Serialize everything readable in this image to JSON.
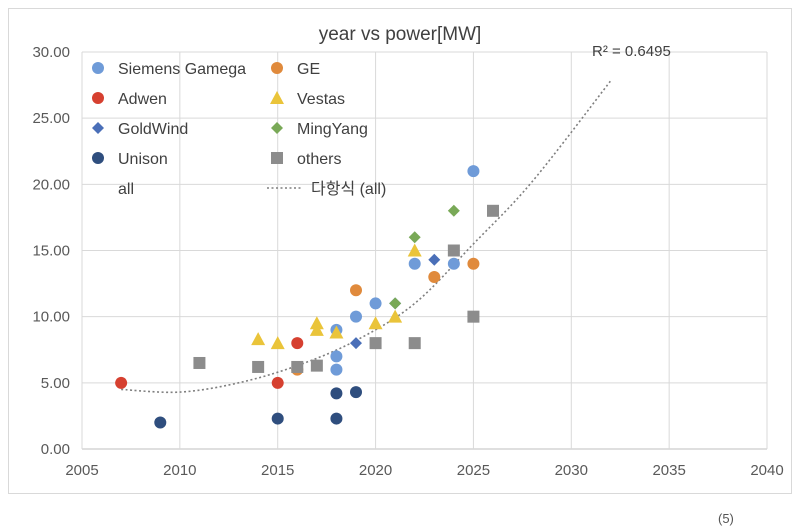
{
  "chart_data": {
    "type": "scatter",
    "title": "year vs power[MW]",
    "xlabel": "",
    "ylabel": "",
    "xlim": [
      2005,
      2040
    ],
    "ylim": [
      0,
      30
    ],
    "x_ticks": [
      "2005",
      "2010",
      "2015",
      "2020",
      "2025",
      "2030",
      "2035",
      "2040"
    ],
    "y_ticks": [
      "0.00",
      "5.00",
      "10.00",
      "15.00",
      "20.00",
      "25.00",
      "30.00"
    ],
    "grid": true,
    "legend_position": "top-left",
    "legend": [
      {
        "label": "Siemens Gamega",
        "series": 0
      },
      {
        "label": "GE",
        "series": 1
      },
      {
        "label": "Adwen",
        "series": 2
      },
      {
        "label": "Vestas",
        "series": 3
      },
      {
        "label": "GoldWind",
        "series": 4
      },
      {
        "label": "MingYang",
        "series": 5
      },
      {
        "label": "Unison",
        "series": 6
      },
      {
        "label": "others",
        "series": 7
      },
      {
        "label": "all",
        "series": -1
      },
      {
        "label": "다항식 (all)",
        "series": -2
      }
    ],
    "series": [
      {
        "name": "Siemens Gamega",
        "marker": "circle",
        "color": "#6F9BD8",
        "points": [
          [
            2018,
            9
          ],
          [
            2018,
            7
          ],
          [
            2018,
            6
          ],
          [
            2019,
            10
          ],
          [
            2020,
            11
          ],
          [
            2022,
            14
          ],
          [
            2024,
            14
          ],
          [
            2025,
            21
          ]
        ]
      },
      {
        "name": "GE",
        "marker": "circle",
        "color": "#E08A3C",
        "points": [
          [
            2016,
            6
          ],
          [
            2019,
            12
          ],
          [
            2023,
            13
          ],
          [
            2025,
            14
          ]
        ]
      },
      {
        "name": "Adwen",
        "marker": "circle",
        "color": "#D64030",
        "points": [
          [
            2007,
            5
          ],
          [
            2015,
            5
          ],
          [
            2016,
            8
          ]
        ]
      },
      {
        "name": "Vestas",
        "marker": "triangle",
        "color": "#EAC43A",
        "points": [
          [
            2014,
            8.3
          ],
          [
            2015,
            8
          ],
          [
            2017,
            9.5
          ],
          [
            2017,
            9
          ],
          [
            2018,
            8.8
          ],
          [
            2020,
            9.5
          ],
          [
            2021,
            10
          ],
          [
            2022,
            15
          ]
        ]
      },
      {
        "name": "GoldWind",
        "marker": "diamond",
        "color": "#4A6FB8",
        "points": [
          [
            2019,
            8
          ],
          [
            2021,
            11
          ],
          [
            2023,
            14.3
          ]
        ]
      },
      {
        "name": "MingYang",
        "marker": "diamond",
        "color": "#79A957",
        "points": [
          [
            2021,
            11
          ],
          [
            2022,
            16
          ],
          [
            2024,
            18
          ]
        ]
      },
      {
        "name": "Unison",
        "marker": "circle",
        "color": "#2F4E7E",
        "points": [
          [
            2009,
            2
          ],
          [
            2015,
            2.3
          ],
          [
            2018,
            4.2
          ],
          [
            2018,
            2.3
          ],
          [
            2019,
            4.3
          ]
        ]
      },
      {
        "name": "others",
        "marker": "square",
        "color": "#8C8C8C",
        "points": [
          [
            2011,
            6.5
          ],
          [
            2014,
            6.2
          ],
          [
            2016,
            6.2
          ],
          [
            2017,
            6.3
          ],
          [
            2020,
            8
          ],
          [
            2022,
            8
          ],
          [
            2024,
            15
          ],
          [
            2025,
            10
          ],
          [
            2026,
            18
          ]
        ]
      }
    ],
    "trendline": {
      "name": "다항식 (all)",
      "type": "polynomial",
      "points": [
        [
          2007,
          4.5
        ],
        [
          2010,
          4.3
        ],
        [
          2013,
          5.0
        ],
        [
          2016,
          6.3
        ],
        [
          2019,
          8.2
        ],
        [
          2022,
          11.0
        ],
        [
          2025,
          15.5
        ],
        [
          2028,
          20.2
        ],
        [
          2032,
          27.8
        ]
      ],
      "r2_label": "R² = 0.6495"
    }
  },
  "corner_note": "(5)"
}
